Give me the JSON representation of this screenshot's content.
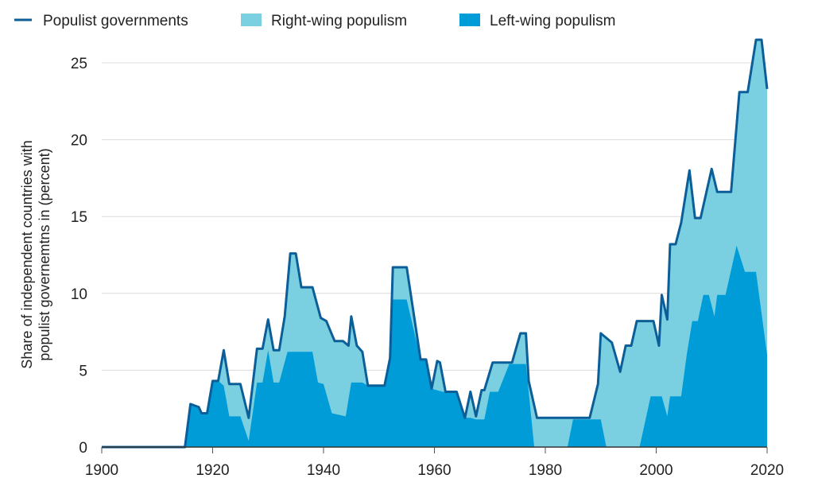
{
  "chart_data": {
    "type": "area",
    "title": "",
    "xlabel": "",
    "ylabel_lines": [
      "Share of independent  countries with",
      "populist  governemtns in (percent)"
    ],
    "xlim": [
      1900,
      2020
    ],
    "ylim": [
      0,
      27
    ],
    "x_ticks": [
      "1900",
      "1920",
      "1940",
      "1960",
      "1980",
      "2000",
      "2020"
    ],
    "y_ticks": [
      "0",
      "5",
      "10",
      "15",
      "20",
      "25"
    ],
    "grid": true,
    "legend_position": "top",
    "legend": [
      "Populist governments",
      "Right-wing populism",
      "Left-wing populism"
    ],
    "colors": {
      "total_line": "#0b5e98",
      "right": "#7ad0e0",
      "left": "#009cd8"
    },
    "series": [
      {
        "name": "Populist governments",
        "points": [
          [
            1900,
            0
          ],
          [
            1915,
            0
          ],
          [
            1916,
            2.8
          ],
          [
            1917.5,
            2.6
          ],
          [
            1918,
            2.2
          ],
          [
            1919,
            2.2
          ],
          [
            1920,
            4.3
          ],
          [
            1921,
            4.3
          ],
          [
            1922,
            6.3
          ],
          [
            1923,
            4.1
          ],
          [
            1925,
            4.1
          ],
          [
            1926.5,
            1.9
          ],
          [
            1928,
            6.4
          ],
          [
            1929,
            6.4
          ],
          [
            1930,
            8.3
          ],
          [
            1931,
            6.3
          ],
          [
            1932,
            6.3
          ],
          [
            1933,
            8.5
          ],
          [
            1934,
            12.6
          ],
          [
            1935,
            12.6
          ],
          [
            1936,
            10.4
          ],
          [
            1938,
            10.4
          ],
          [
            1939.5,
            8.4
          ],
          [
            1940.5,
            8.2
          ],
          [
            1942,
            6.9
          ],
          [
            1943.5,
            6.9
          ],
          [
            1944.5,
            6.6
          ],
          [
            1945,
            8.5
          ],
          [
            1946,
            6.6
          ],
          [
            1947,
            6.2
          ],
          [
            1948,
            4.0
          ],
          [
            1951,
            4.0
          ],
          [
            1952,
            5.8
          ],
          [
            1952.5,
            11.7
          ],
          [
            1955,
            11.7
          ],
          [
            1957.5,
            5.7
          ],
          [
            1958.5,
            5.7
          ],
          [
            1959.5,
            3.8
          ],
          [
            1960.5,
            5.6
          ],
          [
            1961,
            5.5
          ],
          [
            1962,
            3.6
          ],
          [
            1964,
            3.6
          ],
          [
            1965.5,
            1.9
          ],
          [
            1966.5,
            3.6
          ],
          [
            1967.5,
            2.0
          ],
          [
            1968.5,
            3.7
          ],
          [
            1969,
            3.7
          ],
          [
            1970.5,
            5.5
          ],
          [
            1974,
            5.5
          ],
          [
            1975.5,
            7.4
          ],
          [
            1976.5,
            7.4
          ],
          [
            1977,
            4.3
          ],
          [
            1978.5,
            1.9
          ],
          [
            1988,
            1.9
          ],
          [
            1989.5,
            4.1
          ],
          [
            1990,
            7.4
          ],
          [
            1992,
            6.8
          ],
          [
            1993.5,
            4.9
          ],
          [
            1994.5,
            6.6
          ],
          [
            1995.5,
            6.6
          ],
          [
            1996.5,
            8.2
          ],
          [
            1999.5,
            8.2
          ],
          [
            2000.5,
            6.6
          ],
          [
            2001,
            9.9
          ],
          [
            2002,
            8.3
          ],
          [
            2002.5,
            13.2
          ],
          [
            2003.5,
            13.2
          ],
          [
            2004.5,
            14.6
          ],
          [
            2006,
            18.0
          ],
          [
            2007,
            14.9
          ],
          [
            2008,
            14.9
          ],
          [
            2010,
            18.1
          ],
          [
            2011,
            16.6
          ],
          [
            2013.5,
            16.6
          ],
          [
            2015,
            23.1
          ],
          [
            2016.5,
            23.1
          ],
          [
            2018,
            26.5
          ],
          [
            2019,
            26.5
          ],
          [
            2020,
            23.3
          ]
        ]
      },
      {
        "name": "Left-wing populism",
        "points": [
          [
            1900,
            0
          ],
          [
            1915,
            0
          ],
          [
            1916,
            2.8
          ],
          [
            1917.5,
            2.6
          ],
          [
            1918,
            2.2
          ],
          [
            1919,
            2.2
          ],
          [
            1920,
            4.3
          ],
          [
            1921,
            4.3
          ],
          [
            1922,
            4.0
          ],
          [
            1923,
            2.0
          ],
          [
            1925,
            2.0
          ],
          [
            1926.5,
            0.4
          ],
          [
            1928,
            4.2
          ],
          [
            1929,
            4.2
          ],
          [
            1930,
            6.3
          ],
          [
            1931,
            4.2
          ],
          [
            1932,
            4.2
          ],
          [
            1933.5,
            6.2
          ],
          [
            1938,
            6.2
          ],
          [
            1939,
            4.2
          ],
          [
            1940,
            4.1
          ],
          [
            1941.5,
            2.2
          ],
          [
            1944,
            2.0
          ],
          [
            1945,
            4.2
          ],
          [
            1947,
            4.2
          ],
          [
            1948,
            4.0
          ],
          [
            1951,
            4.0
          ],
          [
            1952,
            5.8
          ],
          [
            1952.5,
            9.6
          ],
          [
            1955,
            9.6
          ],
          [
            1957.5,
            5.7
          ],
          [
            1958.5,
            5.7
          ],
          [
            1959.5,
            3.8
          ],
          [
            1961.5,
            3.6
          ],
          [
            1964,
            3.6
          ],
          [
            1965.5,
            1.9
          ],
          [
            1966.5,
            1.9
          ],
          [
            1967.5,
            1.8
          ],
          [
            1969,
            1.8
          ],
          [
            1970,
            3.6
          ],
          [
            1971.5,
            3.6
          ],
          [
            1973.5,
            5.4
          ],
          [
            1976.5,
            5.4
          ],
          [
            1977.5,
            1.8
          ],
          [
            1978,
            0
          ],
          [
            1984,
            0
          ],
          [
            1985,
            1.8
          ],
          [
            1990,
            1.8
          ],
          [
            1991,
            0
          ],
          [
            1997,
            0
          ],
          [
            1999,
            3.3
          ],
          [
            2001,
            3.3
          ],
          [
            2002,
            2.0
          ],
          [
            2002.5,
            3.3
          ],
          [
            2004.5,
            3.3
          ],
          [
            2005.5,
            6.0
          ],
          [
            2006.5,
            8.2
          ],
          [
            2007.5,
            8.2
          ],
          [
            2008.5,
            9.9
          ],
          [
            2009.5,
            9.9
          ],
          [
            2010.5,
            8.5
          ],
          [
            2011,
            9.9
          ],
          [
            2012.5,
            9.9
          ],
          [
            2014.5,
            13.1
          ],
          [
            2016,
            11.4
          ],
          [
            2018,
            11.4
          ],
          [
            2020,
            6.0
          ]
        ]
      }
    ]
  }
}
